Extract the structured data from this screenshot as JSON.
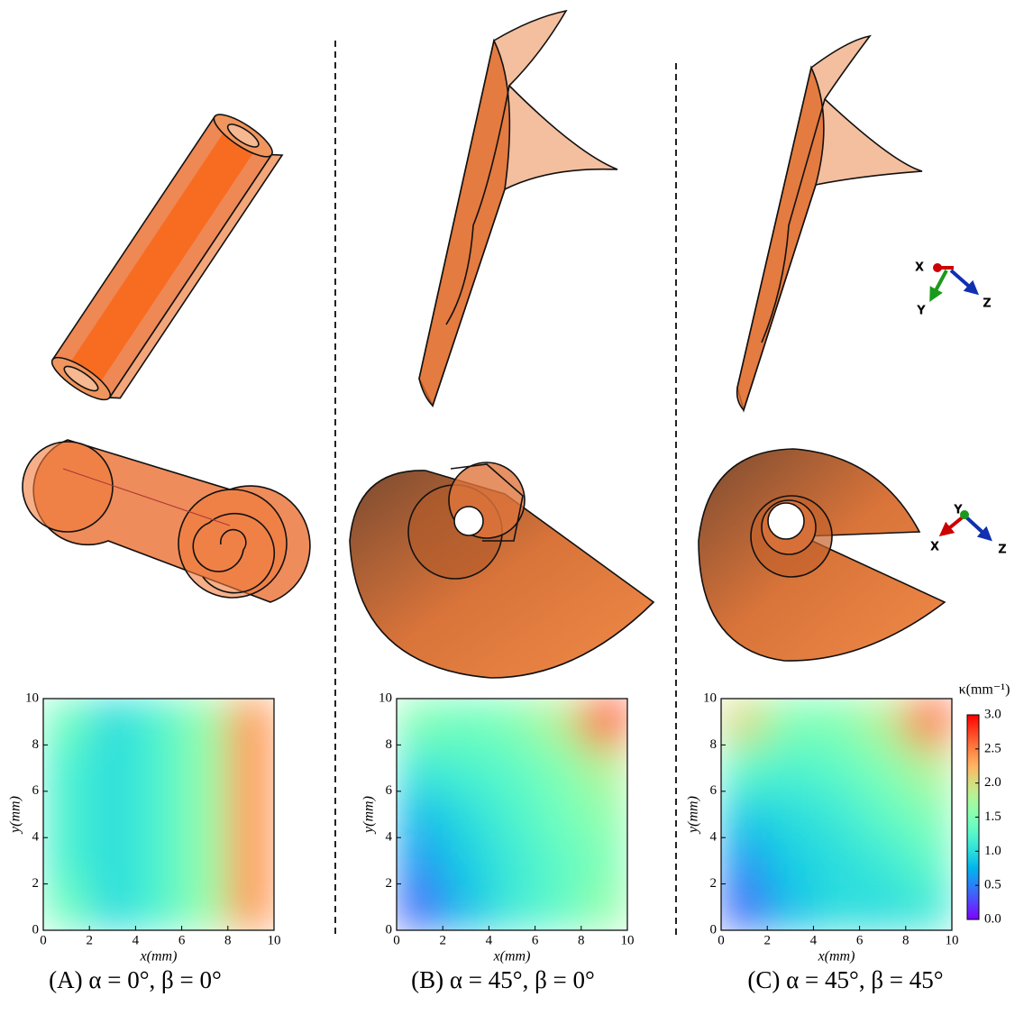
{
  "chart_data": [
    {
      "type": "heatmap",
      "caption": "(A) α = 0°, β = 0°",
      "xlabel": "x(mm)",
      "ylabel": "y(mm)",
      "xlim": [
        0,
        10
      ],
      "ylim": [
        0,
        10
      ],
      "xticks": [
        0,
        2,
        4,
        6,
        8,
        10
      ],
      "yticks": [
        0,
        2,
        4,
        6,
        8,
        10
      ],
      "xbins": [
        0,
        2,
        4,
        6,
        8,
        10
      ],
      "ybins": [
        0,
        2,
        4,
        6,
        8,
        10
      ],
      "z": [
        [
          1.4,
          1.0,
          1.2,
          1.6,
          2.4
        ],
        [
          1.2,
          1.0,
          1.2,
          1.6,
          2.4
        ],
        [
          1.2,
          1.0,
          1.2,
          1.6,
          2.4
        ],
        [
          1.2,
          1.0,
          1.2,
          1.6,
          2.4
        ],
        [
          1.4,
          1.0,
          1.2,
          1.6,
          2.4
        ]
      ]
    },
    {
      "type": "heatmap",
      "caption": "(B)  α = 45°, β = 0°",
      "xlabel": "x(mm)",
      "ylabel": "y(mm)",
      "xlim": [
        0,
        10
      ],
      "ylim": [
        0,
        10
      ],
      "xticks": [
        0,
        2,
        4,
        6,
        8,
        10
      ],
      "yticks": [
        0,
        2,
        4,
        6,
        8,
        10
      ],
      "xbins": [
        0,
        2,
        4,
        6,
        8,
        10
      ],
      "ybins": [
        0,
        2,
        4,
        6,
        8,
        10
      ],
      "z": [
        [
          0.4,
          0.8,
          1.1,
          1.3,
          1.6
        ],
        [
          0.6,
          0.9,
          1.1,
          1.3,
          1.5
        ],
        [
          0.8,
          1.0,
          1.2,
          1.4,
          1.6
        ],
        [
          1.1,
          1.2,
          1.3,
          1.5,
          1.8
        ],
        [
          1.5,
          1.4,
          1.5,
          1.8,
          2.7
        ]
      ]
    },
    {
      "type": "heatmap",
      "caption": "(C)  α = 45°, β = 45°",
      "xlabel": "x(mm)",
      "ylabel": "y(mm)",
      "xlim": [
        0,
        10
      ],
      "ylim": [
        0,
        10
      ],
      "xticks": [
        0,
        2,
        4,
        6,
        8,
        10
      ],
      "yticks": [
        0,
        2,
        4,
        6,
        8,
        10
      ],
      "xbins": [
        0,
        2,
        4,
        6,
        8,
        10
      ],
      "ybins": [
        0,
        2,
        4,
        6,
        8,
        10
      ],
      "z": [
        [
          0.4,
          0.8,
          1.0,
          1.0,
          1.1
        ],
        [
          0.6,
          0.9,
          1.0,
          1.1,
          1.3
        ],
        [
          0.9,
          1.0,
          1.1,
          1.3,
          1.5
        ],
        [
          1.3,
          1.2,
          1.3,
          1.5,
          1.8
        ],
        [
          2.0,
          1.5,
          1.5,
          1.8,
          2.6
        ]
      ],
      "colorbar_label": "κ(mm⁻¹)",
      "zlim": [
        0,
        3
      ],
      "zticks": [
        {
          "value": 0,
          "label": "0.0"
        },
        {
          "value": 0.5,
          "label": "0.5"
        },
        {
          "value": 1,
          "label": "1.0"
        },
        {
          "value": 1.5,
          "label": "1.5"
        },
        {
          "value": 2,
          "label": "2.0"
        },
        {
          "value": 2.5,
          "label": "2.5"
        },
        {
          "value": 3,
          "label": "3.0"
        }
      ]
    }
  ],
  "triads": [
    [
      "X",
      "Y",
      "Z"
    ],
    [
      "Y",
      "X",
      "Z"
    ]
  ]
}
